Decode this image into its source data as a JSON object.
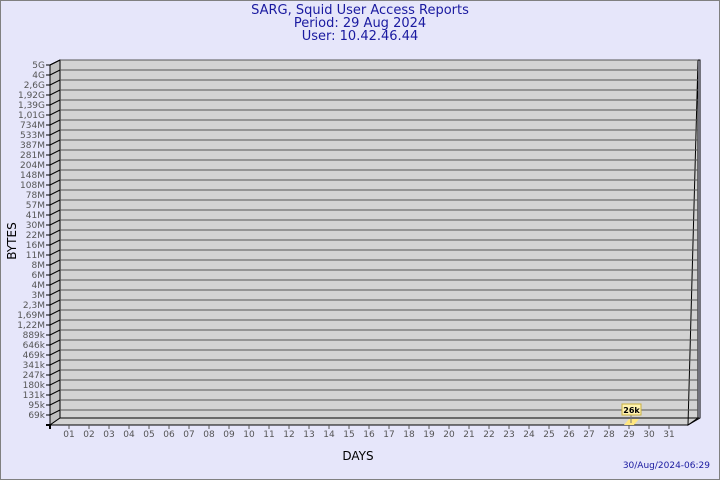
{
  "chart_data": {
    "type": "bar",
    "title": "SARG, Squid User Access Reports",
    "subtitle_period": "Period: 29 Aug 2024",
    "subtitle_user": "User: 10.42.46.44",
    "xlabel": "DAYS",
    "ylabel": "BYTES",
    "y_scale": "log",
    "y_tick_labels": [
      "5G",
      "4G",
      "2,6G",
      "1,92G",
      "1,39G",
      "1,01G",
      "734M",
      "533M",
      "387M",
      "281M",
      "204M",
      "148M",
      "108M",
      "78M",
      "57M",
      "41M",
      "30M",
      "22M",
      "16M",
      "11M",
      "8M",
      "6M",
      "4M",
      "3M",
      "2,3M",
      "1,69M",
      "1,22M",
      "889k",
      "646k",
      "469k",
      "341k",
      "247k",
      "180k",
      "131k",
      "95k",
      "69k"
    ],
    "categories": [
      "01",
      "02",
      "03",
      "04",
      "05",
      "06",
      "07",
      "08",
      "09",
      "10",
      "11",
      "12",
      "13",
      "14",
      "15",
      "16",
      "17",
      "18",
      "19",
      "20",
      "21",
      "22",
      "23",
      "24",
      "25",
      "26",
      "27",
      "28",
      "29",
      "30",
      "31"
    ],
    "values": [
      {
        "day": "29",
        "value": 26000,
        "label": "26k"
      }
    ],
    "grid": true,
    "colors": {
      "background": "#e6e6fa",
      "wall": "#d3d3d3",
      "side": "#c0c0c0",
      "bar": "#ffe680",
      "title": "#1a1aa0"
    }
  },
  "timestamp": "30/Aug/2024-06:29"
}
